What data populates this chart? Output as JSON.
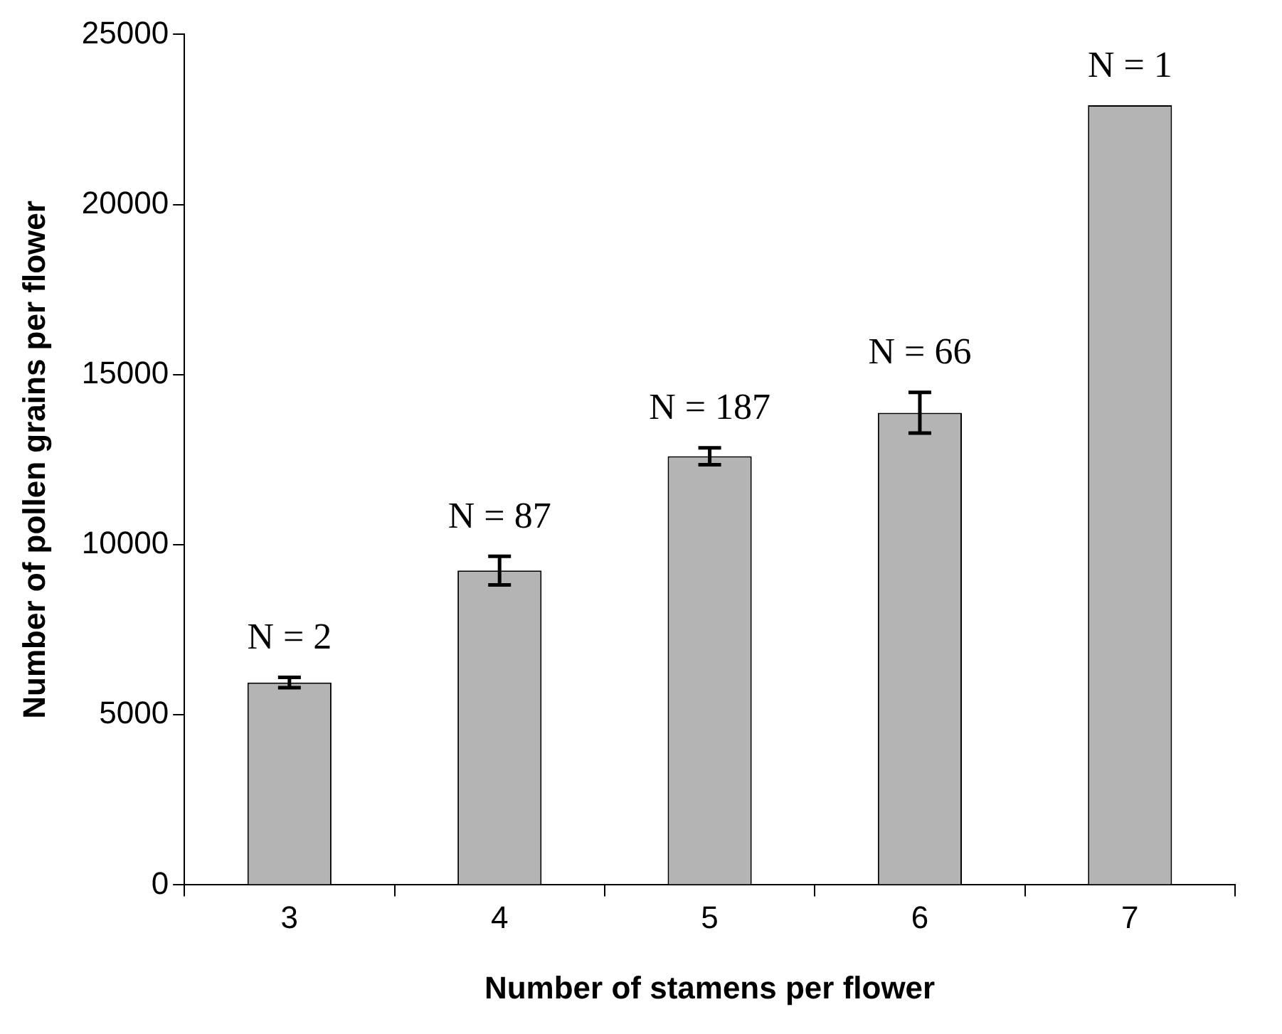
{
  "chart_data": {
    "type": "bar",
    "xlabel": "Number of stamens per flower",
    "ylabel": "Number of pollen grains per flower",
    "categories": [
      "3",
      "4",
      "5",
      "6",
      "7"
    ],
    "values": [
      5950,
      9240,
      12600,
      13880,
      22920
    ],
    "errors": [
      150,
      420,
      250,
      600,
      null
    ],
    "color": "#b4b4b4",
    "ylim": [
      0,
      25000
    ],
    "yticks": [
      0,
      5000,
      10000,
      15000,
      20000,
      25000
    ],
    "grid": false,
    "annotations": [
      {
        "text": "N = 2",
        "x": "3",
        "y": 6100
      },
      {
        "text": "N = 87",
        "x": "4",
        "y": 9660
      },
      {
        "text": "N = 187",
        "x": "5",
        "y": 12850
      },
      {
        "text": "N = 66",
        "x": "6",
        "y": 14480
      },
      {
        "text": "N = 1",
        "x": "7",
        "y": 22920
      }
    ]
  }
}
